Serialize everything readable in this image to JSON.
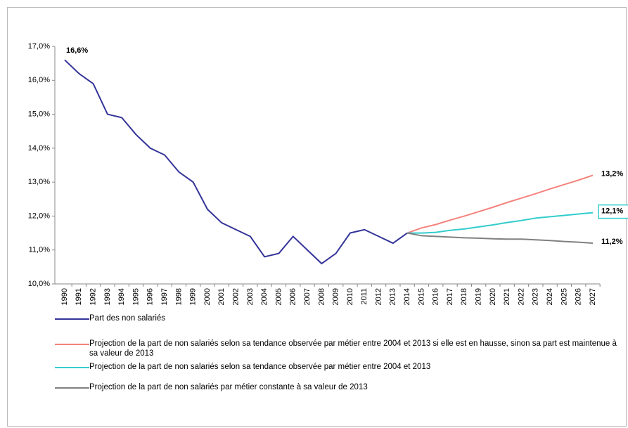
{
  "chart_data": {
    "type": "line",
    "x": [
      1990,
      1991,
      1992,
      1993,
      1994,
      1995,
      1996,
      1997,
      1998,
      1999,
      2000,
      2001,
      2002,
      2003,
      2004,
      2005,
      2006,
      2007,
      2008,
      2009,
      2010,
      2011,
      2012,
      2013,
      2014,
      2015,
      2016,
      2017,
      2018,
      2019,
      2020,
      2021,
      2022,
      2023,
      2024,
      2025,
      2026,
      2027
    ],
    "xlim": [
      1990,
      2027
    ],
    "ylim": [
      10,
      17
    ],
    "yticks": [
      {
        "value": 10,
        "label": "10,0%"
      },
      {
        "value": 11,
        "label": "11,0%"
      },
      {
        "value": 12,
        "label": "12,0%"
      },
      {
        "value": 13,
        "label": "13,0%"
      },
      {
        "value": 14,
        "label": "14,0%"
      },
      {
        "value": 15,
        "label": "15,0%"
      },
      {
        "value": 16,
        "label": "16,0%"
      },
      {
        "value": 17,
        "label": "17,0%"
      }
    ],
    "series": [
      {
        "name": "Part des non salariés",
        "color": "#333399",
        "values": [
          16.6,
          16.2,
          15.9,
          15.0,
          14.9,
          14.4,
          14.0,
          13.8,
          13.3,
          13.0,
          12.2,
          11.8,
          11.6,
          11.4,
          10.8,
          10.9,
          11.4,
          11.0,
          10.6,
          10.9,
          11.5,
          11.6,
          11.4,
          11.2,
          11.5,
          null,
          null,
          null,
          null,
          null,
          null,
          null,
          null,
          null,
          null,
          null,
          null,
          null
        ],
        "value_labels": [
          "16,6%",
          null,
          null,
          null,
          null,
          null,
          null,
          null,
          null,
          null,
          null,
          null,
          null,
          null,
          null,
          null,
          null,
          null,
          null,
          null,
          null,
          null,
          null,
          null,
          null,
          null,
          null,
          null,
          null,
          null,
          null,
          null,
          null,
          null,
          null,
          null,
          null,
          null
        ]
      },
      {
        "name": "Projection de la part de non salariés selon sa tendance observée par métier entre 2004 et 2013 si elle est en hausse, sinon sa part est maintenue à sa valeur de 2013",
        "color": "#f4837d",
        "values": [
          null,
          null,
          null,
          null,
          null,
          null,
          null,
          null,
          null,
          null,
          null,
          null,
          null,
          null,
          null,
          null,
          null,
          null,
          null,
          null,
          null,
          null,
          null,
          null,
          11.5,
          11.65,
          11.75,
          11.88,
          12.0,
          12.13,
          12.26,
          12.4,
          12.53,
          12.66,
          12.8,
          12.93,
          13.06,
          13.2
        ],
        "value_labels": [
          null,
          null,
          null,
          null,
          null,
          null,
          null,
          null,
          null,
          null,
          null,
          null,
          null,
          null,
          null,
          null,
          null,
          null,
          null,
          null,
          null,
          null,
          null,
          null,
          null,
          null,
          null,
          null,
          null,
          null,
          null,
          null,
          null,
          null,
          null,
          null,
          null,
          "13,2%"
        ]
      },
      {
        "name": "Projection de la part de non salariés selon sa tendance observée par métier entre 2004 et 2013",
        "color": "#33cccc",
        "values": [
          null,
          null,
          null,
          null,
          null,
          null,
          null,
          null,
          null,
          null,
          null,
          null,
          null,
          null,
          null,
          null,
          null,
          null,
          null,
          null,
          null,
          null,
          null,
          null,
          11.5,
          11.5,
          11.52,
          11.58,
          11.62,
          11.68,
          11.74,
          11.81,
          11.87,
          11.94,
          11.98,
          12.02,
          12.06,
          12.1
        ],
        "value_labels": [
          null,
          null,
          null,
          null,
          null,
          null,
          null,
          null,
          null,
          null,
          null,
          null,
          null,
          null,
          null,
          null,
          null,
          null,
          null,
          null,
          null,
          null,
          null,
          null,
          null,
          null,
          null,
          null,
          null,
          null,
          null,
          null,
          null,
          null,
          null,
          null,
          null,
          "12,1%"
        ]
      },
      {
        "name": "Projection de la part de non salariés par métier constante à sa valeur de 2013",
        "color": "#808080",
        "values": [
          null,
          null,
          null,
          null,
          null,
          null,
          null,
          null,
          null,
          null,
          null,
          null,
          null,
          null,
          null,
          null,
          null,
          null,
          null,
          null,
          null,
          null,
          null,
          null,
          11.5,
          11.42,
          11.4,
          11.38,
          11.36,
          11.35,
          11.33,
          11.32,
          11.32,
          11.3,
          11.28,
          11.25,
          11.23,
          11.2
        ],
        "value_labels": [
          null,
          null,
          null,
          null,
          null,
          null,
          null,
          null,
          null,
          null,
          null,
          null,
          null,
          null,
          null,
          null,
          null,
          null,
          null,
          null,
          null,
          null,
          null,
          null,
          null,
          null,
          null,
          null,
          null,
          null,
          null,
          null,
          null,
          null,
          null,
          null,
          null,
          "11,2%"
        ]
      }
    ]
  }
}
